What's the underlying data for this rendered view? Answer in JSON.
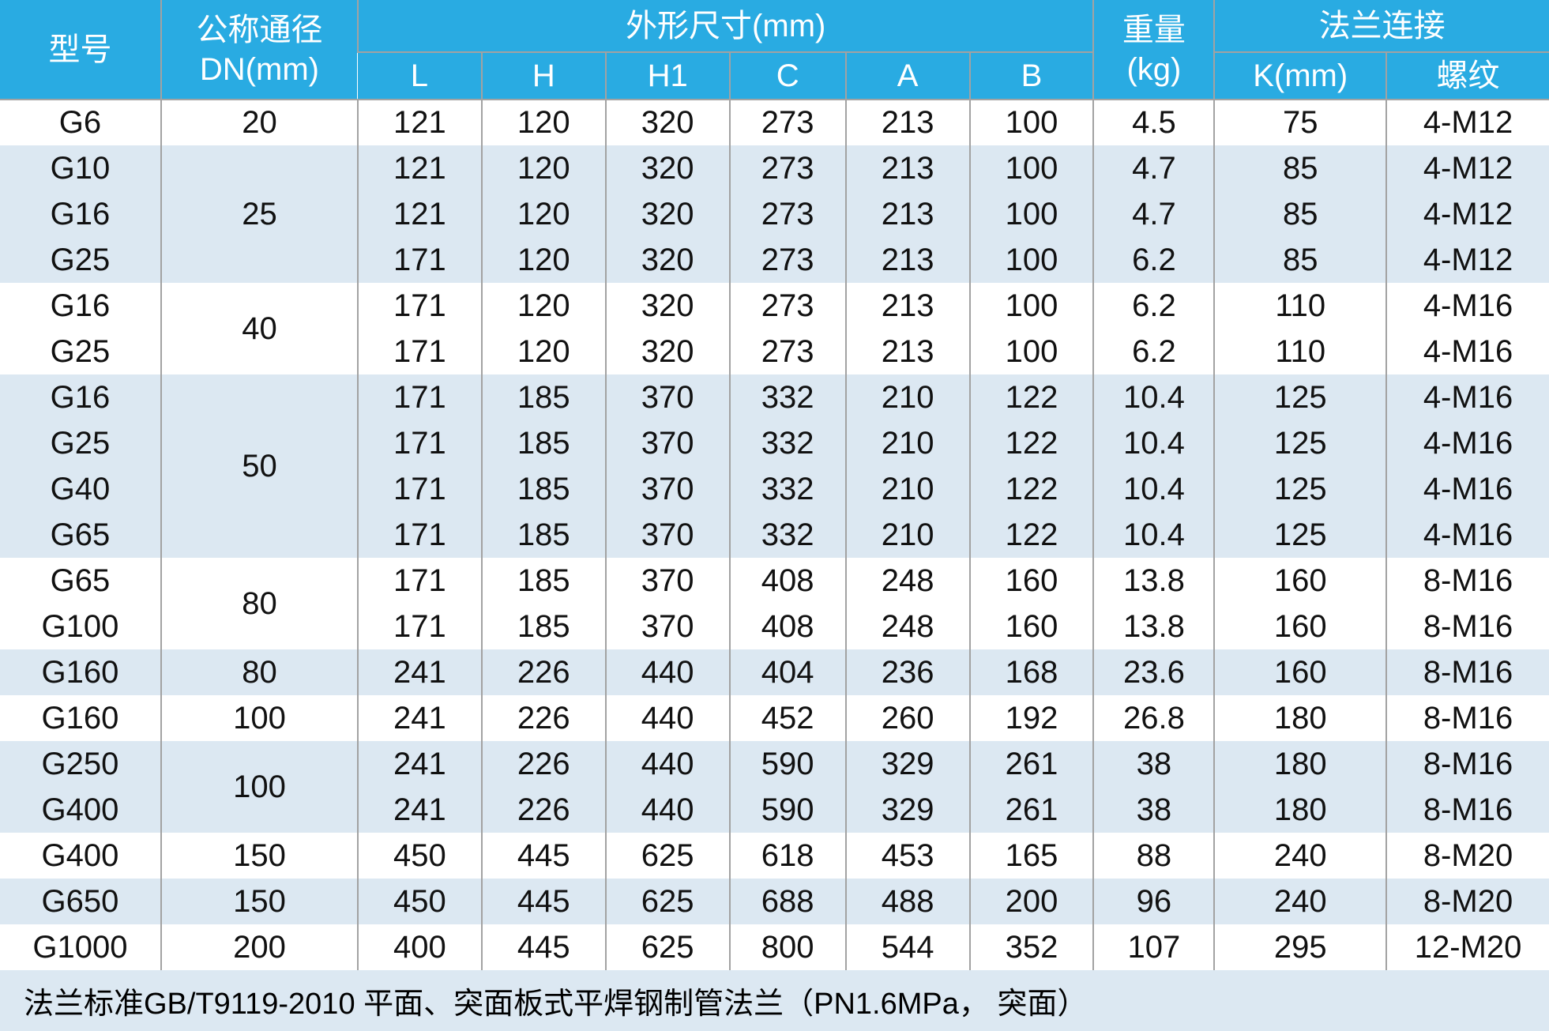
{
  "theme": {
    "header_blue": "#29abe2",
    "row_alt_blue": "#dce8f2",
    "grid_line": "#a2a2a2"
  },
  "table": {
    "columns": {
      "model": "型号",
      "dn_line1": "公称通径",
      "dn_line2": "DN(mm)",
      "dims_group": "外形尺寸(mm)",
      "dims": [
        "L",
        "H",
        "H1",
        "C",
        "A",
        "B"
      ],
      "weight_line1": "重量",
      "weight_line2": "(kg)",
      "flange_group": "法兰连接",
      "flange_k": "K(mm)",
      "flange_thread": "螺纹"
    },
    "groups": [
      {
        "dn": "20",
        "rows": [
          {
            "model": "G6",
            "values": [
              "121",
              "120",
              "320",
              "273",
              "213",
              "100",
              "4.5",
              "75",
              "4-M12"
            ]
          }
        ]
      },
      {
        "dn": "25",
        "rows": [
          {
            "model": "G10",
            "values": [
              "121",
              "120",
              "320",
              "273",
              "213",
              "100",
              "4.7",
              "85",
              "4-M12"
            ]
          },
          {
            "model": "G16",
            "values": [
              "121",
              "120",
              "320",
              "273",
              "213",
              "100",
              "4.7",
              "85",
              "4-M12"
            ]
          },
          {
            "model": "G25",
            "values": [
              "171",
              "120",
              "320",
              "273",
              "213",
              "100",
              "6.2",
              "85",
              "4-M12"
            ]
          }
        ]
      },
      {
        "dn": "40",
        "rows": [
          {
            "model": "G16",
            "values": [
              "171",
              "120",
              "320",
              "273",
              "213",
              "100",
              "6.2",
              "110",
              "4-M16"
            ]
          },
          {
            "model": "G25",
            "values": [
              "171",
              "120",
              "320",
              "273",
              "213",
              "100",
              "6.2",
              "110",
              "4-M16"
            ]
          }
        ]
      },
      {
        "dn": "50",
        "rows": [
          {
            "model": "G16",
            "values": [
              "171",
              "185",
              "370",
              "332",
              "210",
              "122",
              "10.4",
              "125",
              "4-M16"
            ]
          },
          {
            "model": "G25",
            "values": [
              "171",
              "185",
              "370",
              "332",
              "210",
              "122",
              "10.4",
              "125",
              "4-M16"
            ]
          },
          {
            "model": "G40",
            "values": [
              "171",
              "185",
              "370",
              "332",
              "210",
              "122",
              "10.4",
              "125",
              "4-M16"
            ]
          },
          {
            "model": "G65",
            "values": [
              "171",
              "185",
              "370",
              "332",
              "210",
              "122",
              "10.4",
              "125",
              "4-M16"
            ]
          }
        ]
      },
      {
        "dn": "80",
        "rows": [
          {
            "model": "G65",
            "values": [
              "171",
              "185",
              "370",
              "408",
              "248",
              "160",
              "13.8",
              "160",
              "8-M16"
            ]
          },
          {
            "model": "G100",
            "values": [
              "171",
              "185",
              "370",
              "408",
              "248",
              "160",
              "13.8",
              "160",
              "8-M16"
            ]
          }
        ]
      },
      {
        "dn": "80",
        "rows": [
          {
            "model": "G160",
            "values": [
              "241",
              "226",
              "440",
              "404",
              "236",
              "168",
              "23.6",
              "160",
              "8-M16"
            ]
          }
        ]
      },
      {
        "dn": "100",
        "rows": [
          {
            "model": "G160",
            "values": [
              "241",
              "226",
              "440",
              "452",
              "260",
              "192",
              "26.8",
              "180",
              "8-M16"
            ]
          }
        ]
      },
      {
        "dn": "100",
        "rows": [
          {
            "model": "G250",
            "values": [
              "241",
              "226",
              "440",
              "590",
              "329",
              "261",
              "38",
              "180",
              "8-M16"
            ]
          },
          {
            "model": "G400",
            "values": [
              "241",
              "226",
              "440",
              "590",
              "329",
              "261",
              "38",
              "180",
              "8-M16"
            ]
          }
        ]
      },
      {
        "dn": "150",
        "rows": [
          {
            "model": "G400",
            "values": [
              "450",
              "445",
              "625",
              "618",
              "453",
              "165",
              "88",
              "240",
              "8-M20"
            ]
          }
        ]
      },
      {
        "dn": "150",
        "rows": [
          {
            "model": "G650",
            "values": [
              "450",
              "445",
              "625",
              "688",
              "488",
              "200",
              "96",
              "240",
              "8-M20"
            ]
          }
        ]
      },
      {
        "dn": "200",
        "rows": [
          {
            "model": "G1000",
            "values": [
              "400",
              "445",
              "625",
              "800",
              "544",
              "352",
              "107",
              "295",
              "12-M20"
            ]
          }
        ]
      }
    ],
    "footer_note": "法兰标准GB/T9119-2010 平面、突面板式平焊钢制管法兰（PN1.6MPa， 突面）"
  }
}
